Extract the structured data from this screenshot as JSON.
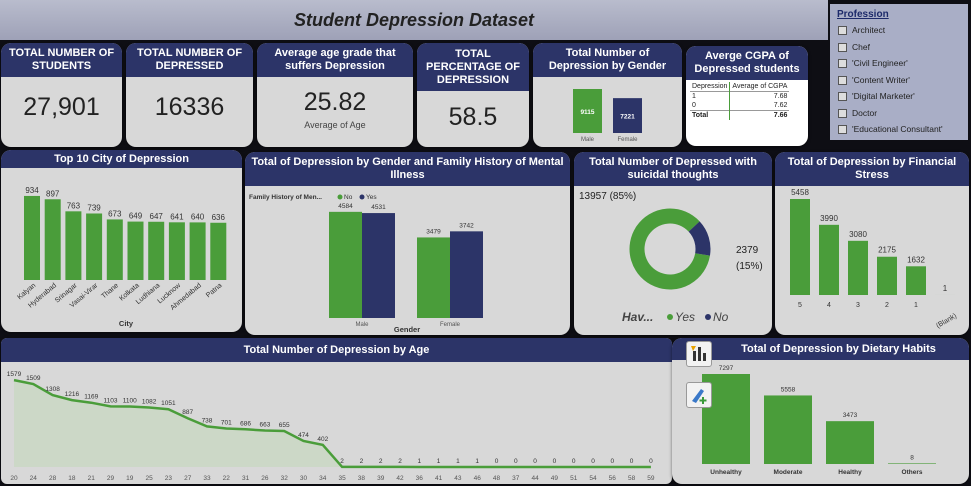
{
  "title": "Student Depression Dataset",
  "kpis": {
    "students": {
      "label": "TOTAL NUMBER OF STUDENTS",
      "value": "27,901"
    },
    "depressed": {
      "label": "TOTAL NUMBER OF DEPRESSED",
      "value": "16336"
    },
    "age": {
      "label": "Average age grade that suffers Depression",
      "value": "25.82",
      "sub": "Average of Age"
    },
    "pct": {
      "label": "TOTAL PERCENTAGE OF DEPRESSION",
      "value": "58.5"
    }
  },
  "gender_card": {
    "title": "Total Number of Depression by Gender"
  },
  "cgpa": {
    "title": "Averge CGPA of Depressed students",
    "headers": [
      "Depression",
      "Average of CGPA"
    ],
    "rows": [
      [
        "1",
        "7.68"
      ],
      [
        "0",
        "7.62"
      ],
      [
        "Total",
        "7.66"
      ]
    ]
  },
  "slicer": {
    "title": "Profession",
    "items": [
      "Architect",
      "Chef",
      "'Civil Engineer'",
      "'Content Writer'",
      "'Digital Marketer'",
      "Doctor",
      "'Educational Consultant'"
    ]
  },
  "city_card": {
    "title": "Top 10 City of Depression"
  },
  "fam_card": {
    "title": "Total of Depression by Gender and Family History of Mental Illness"
  },
  "suicide_card": {
    "title": "Total Number of Depressed with suicidal thoughts"
  },
  "fin_card": {
    "title": "Total of Depression by Financial Stress"
  },
  "age_card": {
    "title": "Total Number of Depression by Age"
  },
  "diet_card": {
    "title": "Total of Depression by Dietary Habits"
  },
  "colors": {
    "green": "#4a9d3a",
    "navy": "#2c3468"
  },
  "chart_data": [
    {
      "type": "bar",
      "id": "gender",
      "title": "Total Number of Depression by Gender",
      "categories": [
        "Male",
        "Female"
      ],
      "values": [
        9115,
        7221
      ],
      "colors": [
        "#4a9d3a",
        "#2c3468"
      ]
    },
    {
      "type": "bar",
      "id": "city",
      "title": "Top 10 City of Depression",
      "xlabel": "City",
      "categories": [
        "Kalyan",
        "Hyderabad",
        "Srinagar",
        "Vasai-Virar",
        "Thane",
        "Kolkata",
        "Ludhiana",
        "Lucknow",
        "Ahmedabad",
        "Patna"
      ],
      "values": [
        934,
        897,
        763,
        739,
        673,
        649,
        647,
        641,
        640,
        636
      ]
    },
    {
      "type": "bar",
      "id": "family",
      "title": "Total of Depression by Gender and Family History of Mental Illness",
      "xlabel": "Gender",
      "legend_title": "Family History of Men...",
      "categories": [
        "Male",
        "Female"
      ],
      "series": [
        {
          "name": "No",
          "values": [
            4584,
            3479
          ]
        },
        {
          "name": "Yes",
          "values": [
            4531,
            3742
          ]
        }
      ]
    },
    {
      "type": "pie",
      "id": "suicide",
      "title": "Total Number of Depressed with suicidal thoughts",
      "legend_title": "Hav...",
      "labels": [
        "Yes",
        "No"
      ],
      "values": [
        13957,
        2379
      ],
      "display": [
        "13957 (85%)",
        "2379 (15%)"
      ]
    },
    {
      "type": "bar",
      "id": "financial",
      "title": "Total of Depression by Financial Stress",
      "categories": [
        "5",
        "4",
        "3",
        "2",
        "1",
        "(Blank)"
      ],
      "values": [
        5458,
        3990,
        3080,
        2175,
        1632,
        1
      ]
    },
    {
      "type": "area",
      "id": "age",
      "title": "Total Number of Depression by Age",
      "x": [
        "20",
        "24",
        "28",
        "18",
        "21",
        "29",
        "19",
        "25",
        "23",
        "27",
        "33",
        "22",
        "31",
        "26",
        "32",
        "30",
        "34",
        "35",
        "38",
        "39",
        "42",
        "36",
        "41",
        "43",
        "46",
        "48",
        "37",
        "44",
        "49",
        "51",
        "54",
        "56",
        "58",
        "59"
      ],
      "values": [
        1579,
        1509,
        1308,
        1216,
        1169,
        1103,
        1100,
        1082,
        1051,
        887,
        738,
        701,
        686,
        663,
        655,
        474,
        402,
        2,
        2,
        2,
        2,
        1,
        1,
        1,
        1,
        0,
        0,
        0,
        0,
        0,
        0,
        0,
        0,
        0
      ]
    },
    {
      "type": "bar",
      "id": "diet",
      "title": "Total of Depression by Dietary Habits",
      "categories": [
        "Unhealthy",
        "Moderate",
        "Healthy",
        "Others"
      ],
      "values": [
        7297,
        5558,
        3473,
        8
      ]
    }
  ]
}
